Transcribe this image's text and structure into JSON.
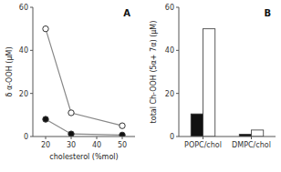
{
  "chart_data": [
    {
      "type": "line",
      "title": "A",
      "x": [
        20,
        30,
        50
      ],
      "series": [
        {
          "color": "#ffffff",
          "marker": "circle",
          "values": [
            50,
            11,
            5
          ]
        },
        {
          "color": "#111111",
          "marker": "circle",
          "values": [
            8,
            1.2,
            0.7
          ]
        }
      ],
      "x_label": "cholesterol (%mol)",
      "y_label": "δ α-OOH (μM)",
      "xlim": [
        15,
        55
      ],
      "xticks": [
        20,
        30,
        40,
        50
      ],
      "ylim": [
        0,
        60
      ],
      "yticks": [
        0,
        20,
        40,
        60
      ]
    },
    {
      "type": "bar",
      "title": "B",
      "categories": [
        "POPC/chol",
        "DMPC/chol"
      ],
      "series": [
        {
          "color": "#111111",
          "values": [
            10.5,
            1.0
          ]
        },
        {
          "color": "#ffffff",
          "values": [
            50,
            3.0
          ]
        }
      ],
      "y_label": "total Ch-OOH (5α+ 7α) (μM)",
      "ylim": [
        0,
        60
      ],
      "yticks": [
        0,
        20,
        40,
        60
      ]
    }
  ]
}
